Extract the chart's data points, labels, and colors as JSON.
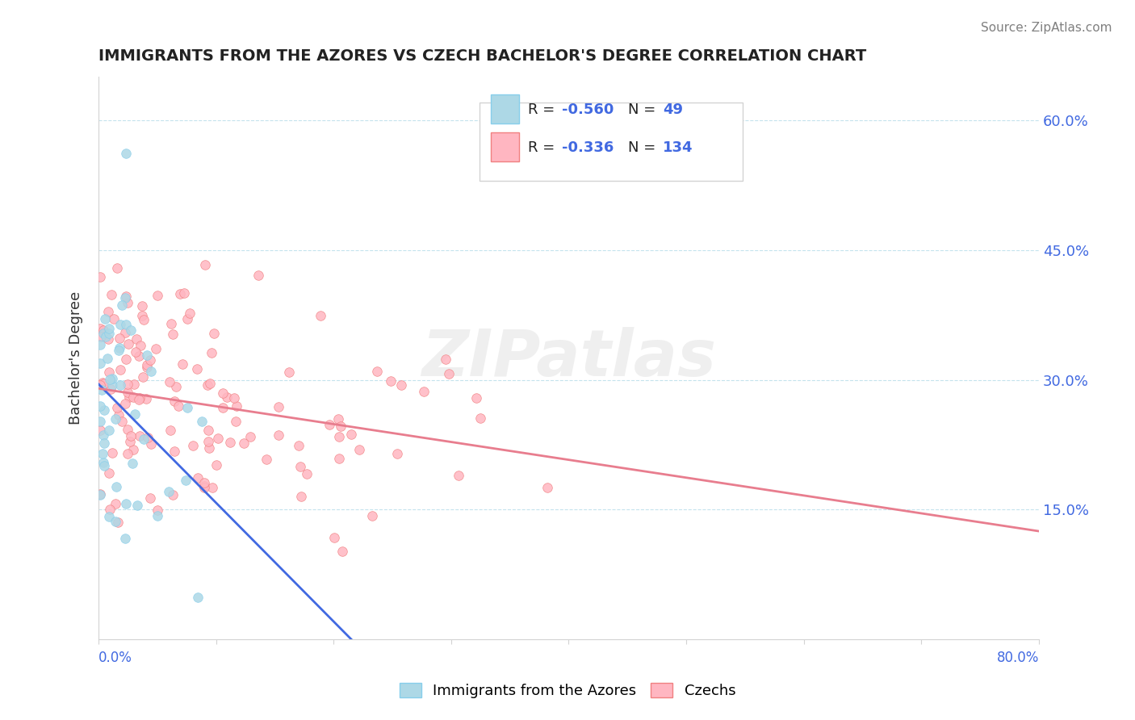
{
  "title": "IMMIGRANTS FROM THE AZORES VS CZECH BACHELOR'S DEGREE CORRELATION CHART",
  "source": "Source: ZipAtlas.com",
  "ylabel": "Bachelor's Degree",
  "ylabel_right_ticks": [
    "60.0%",
    "45.0%",
    "30.0%",
    "15.0%"
  ],
  "ylabel_right_vals": [
    0.6,
    0.45,
    0.3,
    0.15
  ],
  "xlim": [
    0.0,
    0.8
  ],
  "ylim": [
    0.0,
    0.65
  ],
  "color_blue_fill": "#add8e6",
  "color_blue_edge": "#87ceeb",
  "color_pink_fill": "#ffb6c1",
  "color_pink_edge": "#f08080",
  "color_line_blue": "#4169E1",
  "color_line_pink": "#e87d8e",
  "color_axis_label": "#4169E1",
  "watermark": "ZIPatlas",
  "legend_label1": "Immigrants from the Azores",
  "legend_label2": "Czechs",
  "r1": "-0.560",
  "n1": "49",
  "r2": "-0.336",
  "n2": "134",
  "blue_trend_x": [
    0.0,
    0.215
  ],
  "blue_trend_y": [
    0.295,
    0.0
  ],
  "pink_trend_x": [
    0.0,
    0.8
  ],
  "pink_trend_y": [
    0.29,
    0.125
  ]
}
